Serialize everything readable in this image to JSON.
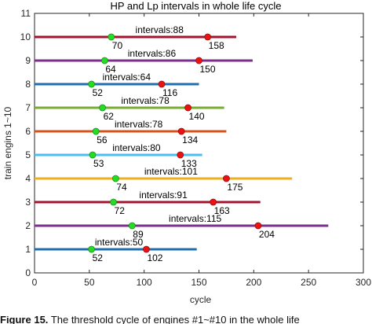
{
  "chart_data": {
    "type": "line",
    "title": "HP and Lp intervals  in whole life cycle",
    "xlabel": "cycle",
    "ylabel": "train engins 1~10",
    "xlim": [
      0,
      300
    ],
    "ylim": [
      0,
      11
    ],
    "xticks": [
      "0",
      "50",
      "100",
      "150",
      "200",
      "250",
      "300"
    ],
    "yticks": [
      "0",
      "1",
      "2",
      "3",
      "4",
      "5",
      "6",
      "7",
      "8",
      "9",
      "10",
      "11"
    ],
    "grid": false,
    "series": [
      {
        "engine": 1,
        "color": "#1f6fb0",
        "line_end": 148,
        "lp": 52,
        "hp": 102,
        "interval": "intervals:50",
        "lp_label": "52",
        "hp_label": "102"
      },
      {
        "engine": 2,
        "color": "#7e2f8e",
        "line_end": 268,
        "lp": 89,
        "hp": 204,
        "interval": "intervals:115",
        "lp_label": "89",
        "hp_label": "204"
      },
      {
        "engine": 3,
        "color": "#a2142f",
        "line_end": 206,
        "lp": 72,
        "hp": 163,
        "interval": "intervals:91",
        "lp_label": "72",
        "hp_label": "163"
      },
      {
        "engine": 4,
        "color": "#edb120",
        "line_end": 235,
        "lp": 74,
        "hp": 175,
        "interval": "intervals:101",
        "lp_label": "74",
        "hp_label": "175"
      },
      {
        "engine": 5,
        "color": "#4dbeee",
        "line_end": 153,
        "lp": 53,
        "hp": 133,
        "interval": "intervals:80",
        "lp_label": "53",
        "hp_label": "133"
      },
      {
        "engine": 6,
        "color": "#d95319",
        "line_end": 175,
        "lp": 56,
        "hp": 134,
        "interval": "intervals:78",
        "lp_label": "56",
        "hp_label": "134"
      },
      {
        "engine": 7,
        "color": "#77ac30",
        "line_end": 173,
        "lp": 62,
        "hp": 140,
        "interval": "intervals:78",
        "lp_label": "62",
        "hp_label": "140"
      },
      {
        "engine": 8,
        "color": "#1f6fb0",
        "line_end": 150,
        "lp": 52,
        "hp": 116,
        "interval": "intervals:64",
        "lp_label": "52",
        "hp_label": "116"
      },
      {
        "engine": 9,
        "color": "#7e2f8e",
        "line_end": 199,
        "lp": 64,
        "hp": 150,
        "interval": "intervals:86",
        "lp_label": "64",
        "hp_label": "150"
      },
      {
        "engine": 10,
        "color": "#a2142f",
        "line_end": 184,
        "lp": 70,
        "hp": 158,
        "interval": "intervals:88",
        "lp_label": "70",
        "hp_label": "158"
      }
    ],
    "lp_marker_color": "#22dd22",
    "hp_marker_color": "#ee1111"
  },
  "caption": {
    "label": "Figure 15.",
    "text": "The threshold cycle of engines #1~#10 in the whole life"
  }
}
